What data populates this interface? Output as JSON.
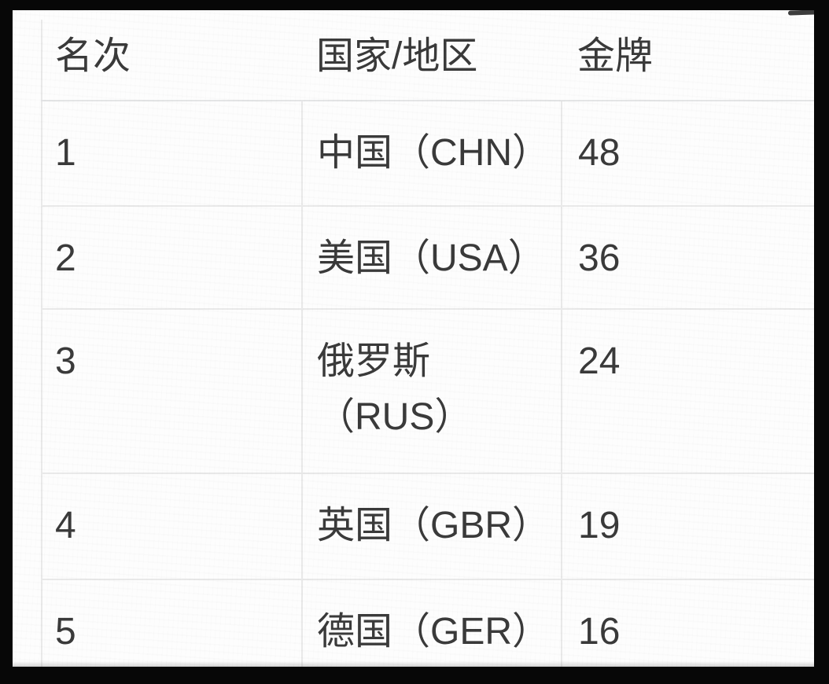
{
  "table": {
    "headers": [
      "名次",
      "国家/地区",
      "金牌"
    ],
    "rows": [
      {
        "rank": "1",
        "country": "中国（CHN）",
        "gold": "48"
      },
      {
        "rank": "2",
        "country": "美国（USA）",
        "gold": "36"
      },
      {
        "rank": "3",
        "country": "俄罗斯\n（RUS）",
        "gold": "24"
      },
      {
        "rank": "4",
        "country": "英国（GBR）",
        "gold": "19"
      },
      {
        "rank": "5",
        "country": "德国（GER）",
        "gold": "16"
      }
    ]
  },
  "colors": {
    "text": "#3a3a3a",
    "grid_line": "#e9e9e9",
    "page_background": "#fdfdfd",
    "frame": "#070707"
  }
}
